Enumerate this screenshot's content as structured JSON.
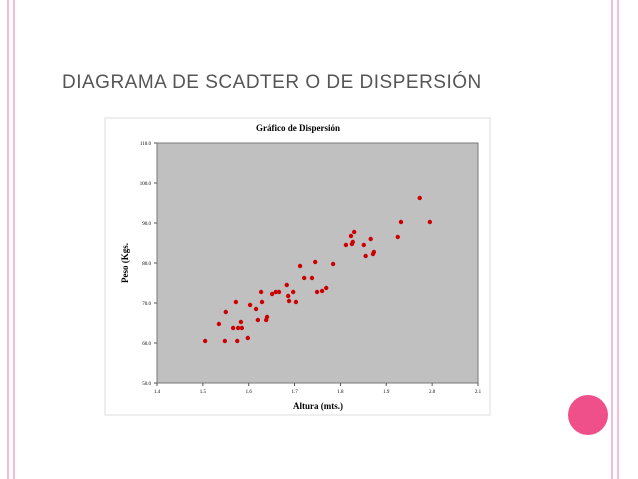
{
  "slide": {
    "title": "DIAGRAMA DE SCADTER O DE DISPERSIÓN"
  },
  "chart_data": {
    "type": "scatter",
    "title": "Gráfico de Dispersión",
    "x_label": "Altura (mts.)",
    "y_label": "Peso (Kgs.",
    "xlim": [
      1.4,
      2.1
    ],
    "ylim": [
      50,
      110
    ],
    "xticks": [
      1.4,
      1.5,
      1.6,
      1.7,
      1.8,
      1.9,
      {
        "value": 2,
        "label": "2.0"
      },
      2.1
    ],
    "yticks": [
      {
        "value": 50,
        "label": "50.0"
      },
      {
        "value": 60,
        "label": "60.0"
      },
      {
        "value": 70,
        "label": "70.0"
      },
      {
        "value": 80,
        "label": "80.0"
      },
      {
        "value": 90,
        "label": "90.0"
      },
      {
        "value": 100,
        "label": "100.0"
      },
      {
        "value": 110,
        "label": "110.0"
      }
    ],
    "grid": false,
    "series": [
      {
        "color": "#cc0000",
        "x": [
          1.505,
          1.535,
          1.548,
          1.55,
          1.566,
          1.572,
          1.575,
          1.577,
          1.583,
          1.585,
          1.598,
          1.603,
          1.616,
          1.62,
          1.627,
          1.629,
          1.638,
          1.64,
          1.651,
          1.659,
          1.666,
          1.683,
          1.686,
          1.688,
          1.697,
          1.703,
          1.712,
          1.721,
          1.738,
          1.745,
          1.749,
          1.76,
          1.769,
          1.784,
          1.812,
          1.823,
          1.825,
          1.827,
          1.83,
          1.851,
          1.855,
          1.866,
          1.871,
          1.873,
          1.925,
          1.932,
          1.973,
          1.995
        ],
        "values": [
          60.5,
          64.75,
          60.5,
          67.75,
          63.75,
          70.25,
          60.5,
          63.75,
          65.25,
          63.75,
          61.25,
          69.5,
          68.5,
          65.75,
          72.75,
          70.25,
          65.75,
          66.5,
          72.25,
          72.75,
          72.75,
          74.5,
          71.75,
          70.5,
          72.75,
          70.25,
          79.25,
          76.25,
          76.25,
          80.25,
          72.75,
          73,
          73.75,
          79.75,
          84.5,
          86.75,
          84.75,
          85.25,
          87.75,
          84.5,
          81.75,
          86,
          82.25,
          82.75,
          86.5,
          90.25,
          96.25,
          90.25
        ]
      }
    ]
  }
}
